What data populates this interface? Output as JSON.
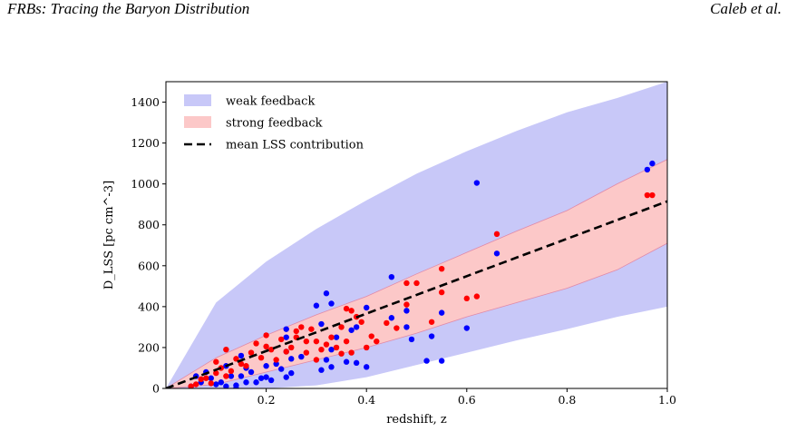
{
  "header": {
    "left": "FRBs: Tracing the Baryon Distribution",
    "right": "Caleb et al."
  },
  "chart_data": {
    "type": "scatter",
    "xlabel": "redshift, z",
    "ylabel": "D_LSS [pc cm^-3]",
    "xlim": [
      0,
      1.0
    ],
    "ylim": [
      0,
      1500
    ],
    "x_ticks": [
      0.2,
      0.4,
      0.6,
      0.8,
      1.0
    ],
    "x_tick_labels": [
      "0.2",
      "0.4",
      "0.6",
      "0.8",
      "1.0"
    ],
    "y_ticks": [
      0,
      200,
      400,
      600,
      800,
      1000,
      1200,
      1400
    ],
    "y_tick_labels": [
      "0",
      "200",
      "400",
      "600",
      "800",
      "1000",
      "1200",
      "1400"
    ],
    "grid": false,
    "legend_position": "top-left",
    "legend": [
      {
        "label": "weak feedback",
        "kind": "band",
        "color": "#c8c8f8"
      },
      {
        "label": "strong feedback",
        "kind": "band",
        "color": "#fcc8c8"
      },
      {
        "label": "mean LSS contribution",
        "kind": "dashed-line",
        "color": "#000000"
      }
    ],
    "weak_band": {
      "color": "#c8c8f8",
      "x": [
        0,
        0.1,
        0.2,
        0.3,
        0.4,
        0.5,
        0.6,
        0.7,
        0.8,
        0.9,
        1.0
      ],
      "lower": [
        0,
        0,
        0,
        15,
        55,
        115,
        175,
        235,
        290,
        350,
        400
      ],
      "upper": [
        0,
        420,
        620,
        780,
        920,
        1050,
        1160,
        1260,
        1350,
        1420,
        1500
      ]
    },
    "strong_band": {
      "color": "#fcc8c8",
      "x": [
        0,
        0.1,
        0.2,
        0.3,
        0.4,
        0.5,
        0.6,
        0.7,
        0.8,
        0.9,
        1.0
      ],
      "lower": [
        0,
        20,
        80,
        140,
        200,
        270,
        350,
        420,
        490,
        580,
        710
      ],
      "upper": [
        0,
        150,
        260,
        360,
        450,
        560,
        665,
        770,
        870,
        1000,
        1120
      ]
    },
    "mean_line": {
      "color": "#000000",
      "x": [
        0,
        1.0
      ],
      "y": [
        0,
        915
      ]
    },
    "series": [
      {
        "color": "#0000ff",
        "points": [
          [
            0.62,
            1005
          ],
          [
            0.97,
            1100
          ],
          [
            0.96,
            1070
          ],
          [
            0.66,
            660
          ],
          [
            0.45,
            545
          ],
          [
            0.6,
            295
          ],
          [
            0.55,
            370
          ],
          [
            0.55,
            135
          ],
          [
            0.52,
            135
          ],
          [
            0.53,
            255
          ],
          [
            0.49,
            240
          ],
          [
            0.48,
            300
          ],
          [
            0.48,
            380
          ],
          [
            0.45,
            345
          ],
          [
            0.4,
            395
          ],
          [
            0.38,
            300
          ],
          [
            0.37,
            285
          ],
          [
            0.4,
            105
          ],
          [
            0.38,
            125
          ],
          [
            0.33,
            415
          ],
          [
            0.32,
            465
          ],
          [
            0.31,
            315
          ],
          [
            0.3,
            405
          ],
          [
            0.34,
            250
          ],
          [
            0.33,
            190
          ],
          [
            0.32,
            140
          ],
          [
            0.33,
            105
          ],
          [
            0.31,
            90
          ],
          [
            0.27,
            155
          ],
          [
            0.24,
            180
          ],
          [
            0.24,
            290
          ],
          [
            0.24,
            250
          ],
          [
            0.25,
            145
          ],
          [
            0.22,
            120
          ],
          [
            0.24,
            55
          ],
          [
            0.25,
            75
          ],
          [
            0.23,
            95
          ],
          [
            0.21,
            40
          ],
          [
            0.2,
            55
          ],
          [
            0.18,
            30
          ],
          [
            0.19,
            50
          ],
          [
            0.17,
            80
          ],
          [
            0.16,
            100
          ],
          [
            0.15,
            160
          ],
          [
            0.15,
            60
          ],
          [
            0.16,
            30
          ],
          [
            0.14,
            15
          ],
          [
            0.12,
            10
          ],
          [
            0.1,
            20
          ],
          [
            0.09,
            50
          ],
          [
            0.08,
            80
          ],
          [
            0.07,
            30
          ],
          [
            0.11,
            30
          ],
          [
            0.13,
            60
          ],
          [
            0.14,
            0
          ],
          [
            0.06,
            60
          ],
          [
            0.05,
            10
          ],
          [
            0.12,
            110
          ],
          [
            0.36,
            130
          ],
          [
            0.2,
            110
          ]
        ]
      },
      {
        "color": "#ff0000",
        "points": [
          [
            0.97,
            945
          ],
          [
            0.96,
            945
          ],
          [
            0.66,
            755
          ],
          [
            0.62,
            450
          ],
          [
            0.6,
            440
          ],
          [
            0.55,
            585
          ],
          [
            0.55,
            470
          ],
          [
            0.53,
            325
          ],
          [
            0.5,
            515
          ],
          [
            0.48,
            515
          ],
          [
            0.48,
            410
          ],
          [
            0.46,
            295
          ],
          [
            0.44,
            320
          ],
          [
            0.4,
            200
          ],
          [
            0.41,
            255
          ],
          [
            0.39,
            325
          ],
          [
            0.38,
            350
          ],
          [
            0.37,
            380
          ],
          [
            0.36,
            390
          ],
          [
            0.35,
            300
          ],
          [
            0.36,
            230
          ],
          [
            0.35,
            170
          ],
          [
            0.34,
            200
          ],
          [
            0.33,
            250
          ],
          [
            0.32,
            215
          ],
          [
            0.31,
            190
          ],
          [
            0.3,
            230
          ],
          [
            0.29,
            290
          ],
          [
            0.28,
            175
          ],
          [
            0.27,
            300
          ],
          [
            0.26,
            250
          ],
          [
            0.25,
            200
          ],
          [
            0.24,
            180
          ],
          [
            0.23,
            240
          ],
          [
            0.22,
            140
          ],
          [
            0.21,
            190
          ],
          [
            0.2,
            205
          ],
          [
            0.19,
            150
          ],
          [
            0.18,
            220
          ],
          [
            0.17,
            175
          ],
          [
            0.16,
            110
          ],
          [
            0.15,
            120
          ],
          [
            0.14,
            145
          ],
          [
            0.13,
            85
          ],
          [
            0.12,
            60
          ],
          [
            0.11,
            100
          ],
          [
            0.1,
            130
          ],
          [
            0.1,
            75
          ],
          [
            0.09,
            25
          ],
          [
            0.08,
            50
          ],
          [
            0.07,
            45
          ],
          [
            0.06,
            20
          ],
          [
            0.05,
            10
          ],
          [
            0.12,
            190
          ],
          [
            0.28,
            230
          ],
          [
            0.37,
            175
          ],
          [
            0.42,
            230
          ],
          [
            0.26,
            280
          ],
          [
            0.3,
            140
          ],
          [
            0.2,
            260
          ]
        ]
      }
    ]
  }
}
